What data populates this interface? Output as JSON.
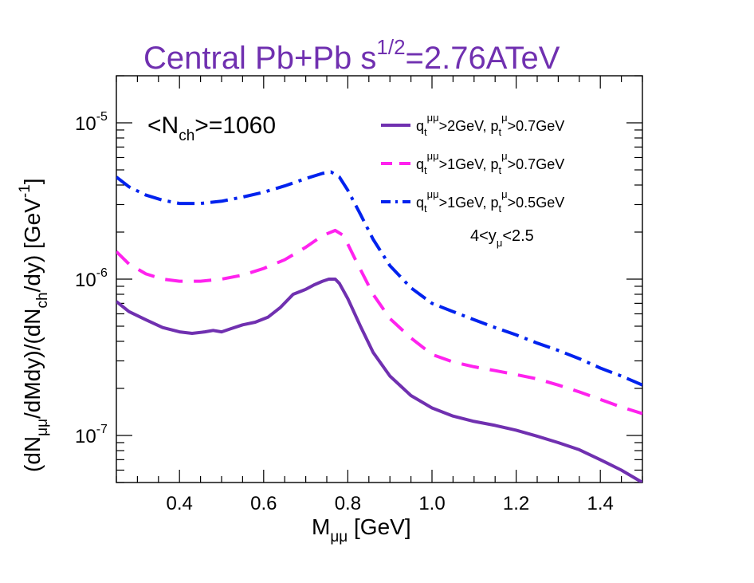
{
  "chart_data": {
    "type": "line",
    "title": {
      "main": "Central Pb+Pb  s",
      "sup": "1/2",
      "rest": "=2.76ATeV"
    },
    "title_color": "#7030b0",
    "xlabel": {
      "main": "M",
      "sub": "μμ",
      "rest": " [GeV]"
    },
    "ylabel": {
      "p1": "(dN",
      "s1": "μμ",
      "p2": "/dMdy)/(dN",
      "s2": "ch",
      "p3": "/dy) [GeV",
      "sup": "-1",
      "p4": "]"
    },
    "xlim": [
      0.25,
      1.5
    ],
    "ylim": [
      5e-08,
      2e-05
    ],
    "yscale": "log",
    "x_ticks": [
      {
        "value": 0.4,
        "label": "0.4"
      },
      {
        "value": 0.6,
        "label": "0.6"
      },
      {
        "value": 0.8,
        "label": "0.8"
      },
      {
        "value": 1.0,
        "label": "1.0"
      },
      {
        "value": 1.2,
        "label": "1.2"
      },
      {
        "value": 1.4,
        "label": "1.4"
      }
    ],
    "y_ticks": [
      {
        "value": 1e-05,
        "base": "10",
        "exp": "-5"
      },
      {
        "value": 1e-06,
        "base": "10",
        "exp": "-6"
      },
      {
        "value": 1e-07,
        "base": "10",
        "exp": "-7"
      }
    ],
    "annotation": {
      "p1": "<N",
      "sub": "ch",
      "p2": ">=1060"
    },
    "rapidity_note": {
      "p1": "4<y",
      "sub": "μ",
      "p2": "<2.5"
    },
    "series": [
      {
        "name": "qt>2GeV, pt>0.7GeV",
        "legend": {
          "a": "q",
          "a_sub": "t",
          "a_sup": "μμ",
          "b": ">2GeV, p",
          "b_sub": "t",
          "b_sup": "μ",
          "c": ">0.7GeV"
        },
        "color": "#7030b0",
        "dash": "",
        "x": [
          0.25,
          0.28,
          0.32,
          0.36,
          0.4,
          0.43,
          0.46,
          0.48,
          0.5,
          0.52,
          0.55,
          0.58,
          0.61,
          0.64,
          0.67,
          0.7,
          0.72,
          0.74,
          0.755,
          0.77,
          0.78,
          0.8,
          0.83,
          0.86,
          0.9,
          0.95,
          1.0,
          1.05,
          1.1,
          1.15,
          1.2,
          1.25,
          1.3,
          1.35,
          1.4,
          1.45,
          1.5
        ],
        "y": [
          7.2e-07,
          6.2e-07,
          5.5e-07,
          4.9e-07,
          4.6e-07,
          4.5e-07,
          4.6e-07,
          4.7e-07,
          4.6e-07,
          4.8e-07,
          5.1e-07,
          5.3e-07,
          5.7e-07,
          6.6e-07,
          8e-07,
          8.6e-07,
          9.2e-07,
          9.7e-07,
          1e-06,
          1e-06,
          9.4e-07,
          7.5e-07,
          5e-07,
          3.4e-07,
          2.4e-07,
          1.8e-07,
          1.5e-07,
          1.33e-07,
          1.23e-07,
          1.16e-07,
          1.08e-07,
          9.9e-08,
          9e-08,
          8.1e-08,
          7e-08,
          6e-08,
          5e-08
        ]
      },
      {
        "name": "qt>1GeV, pt>0.7GeV",
        "legend": {
          "a": "q",
          "a_sub": "t",
          "a_sup": "μμ",
          "b": ">1GeV, p",
          "b_sub": "t",
          "b_sup": "μ",
          "c": ">0.7GeV"
        },
        "color": "#ff22ee",
        "dash": "22,14",
        "x": [
          0.25,
          0.28,
          0.32,
          0.36,
          0.4,
          0.45,
          0.5,
          0.55,
          0.6,
          0.65,
          0.7,
          0.74,
          0.77,
          0.79,
          0.82,
          0.86,
          0.9,
          0.95,
          1.0,
          1.05,
          1.1,
          1.15,
          1.2,
          1.25,
          1.3,
          1.35,
          1.4,
          1.45,
          1.5
        ],
        "y": [
          1.5e-06,
          1.25e-06,
          1.08e-06,
          1e-06,
          9.7e-07,
          9.7e-07,
          1e-06,
          1.06e-06,
          1.17e-06,
          1.33e-06,
          1.6e-06,
          1.9e-06,
          2.05e-06,
          1.9e-06,
          1.3e-06,
          8e-07,
          5.6e-07,
          4.2e-07,
          3.3e-07,
          2.95e-07,
          2.75e-07,
          2.6e-07,
          2.45e-07,
          2.3e-07,
          2.1e-07,
          1.9e-07,
          1.7e-07,
          1.52e-07,
          1.38e-07
        ]
      },
      {
        "name": "qt>1GeV, pt>0.5GeV",
        "legend": {
          "a": "q",
          "a_sub": "t",
          "a_sup": "μμ",
          "b": ">1GeV, p",
          "b_sub": "t",
          "b_sup": "μ",
          "c": ">0.5GeV"
        },
        "color": "#0022ee",
        "dash": "22,8,4,8",
        "x": [
          0.25,
          0.28,
          0.32,
          0.36,
          0.4,
          0.45,
          0.5,
          0.55,
          0.6,
          0.65,
          0.7,
          0.74,
          0.76,
          0.78,
          0.8,
          0.83,
          0.86,
          0.9,
          0.95,
          1.0,
          1.05,
          1.1,
          1.15,
          1.2,
          1.25,
          1.3,
          1.35,
          1.4,
          1.45,
          1.5
        ],
        "y": [
          4.5e-06,
          3.9e-06,
          3.45e-06,
          3.2e-06,
          3.05e-06,
          3.05e-06,
          3.15e-06,
          3.35e-06,
          3.6e-06,
          3.95e-06,
          4.4e-06,
          4.75e-06,
          4.85e-06,
          4.5e-06,
          3.7e-06,
          2.6e-06,
          1.8e-06,
          1.22e-06,
          8.8e-07,
          7e-07,
          6.2e-07,
          5.5e-07,
          4.9e-07,
          4.4e-07,
          3.9e-07,
          3.5e-07,
          3.1e-07,
          2.7e-07,
          2.4e-07,
          2.1e-07
        ]
      }
    ]
  }
}
